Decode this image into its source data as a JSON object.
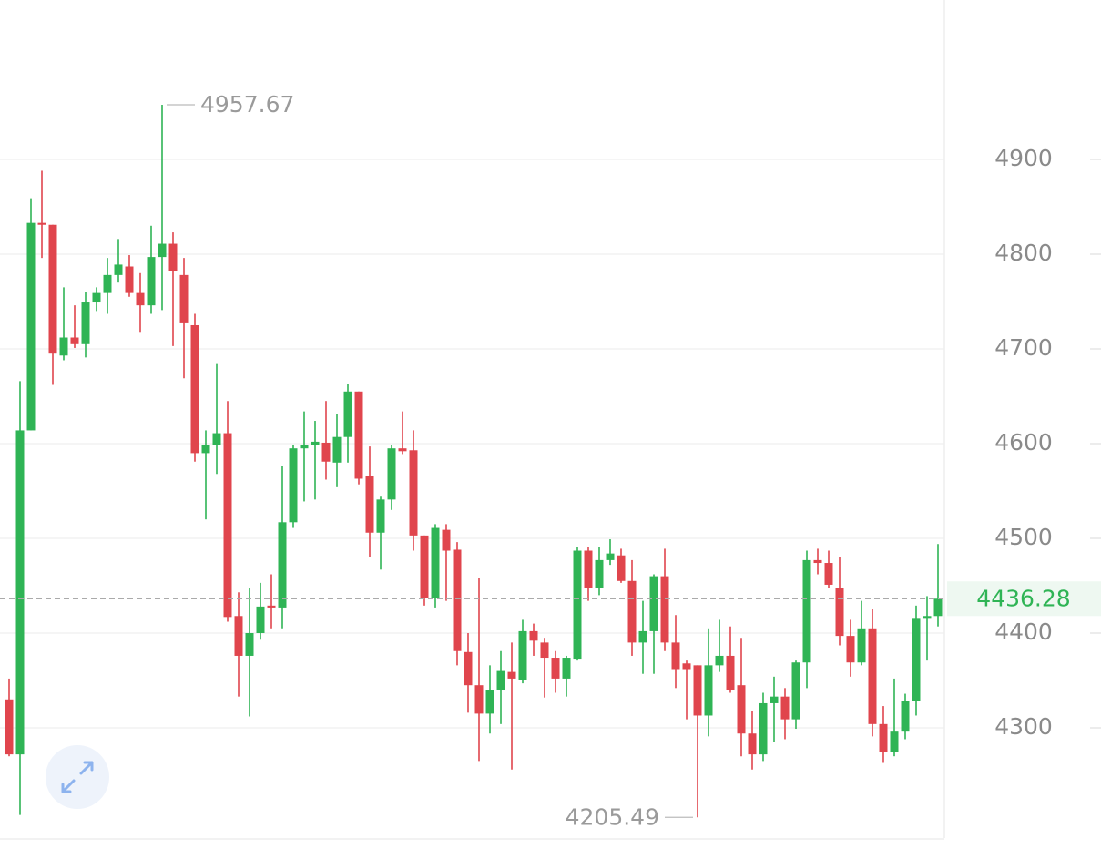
{
  "chart_data": {
    "type": "candlestick",
    "up_color": "#2fb455",
    "down_color": "#e0454d",
    "open": [
      4330,
      4272,
      4614,
      4833,
      4831,
      4693,
      4712,
      4705,
      4749,
      4759,
      4778,
      4787,
      4759,
      4746,
      4797,
      4811,
      4778,
      4725,
      4590,
      4599,
      4611,
      4418,
      4376,
      4400,
      4429,
      4427,
      4517,
      4595,
      4599,
      4601,
      4580,
      4607,
      4655,
      4566,
      4506,
      4541,
      4595,
      4593,
      4503,
      4437,
      4509,
      4488,
      4380,
      4345,
      4315,
      4340,
      4359,
      4350,
      4402,
      4390,
      4374,
      4352,
      4373,
      4487,
      4448,
      4477,
      4482,
      4455,
      4390,
      4402,
      4460,
      4390,
      4368,
      4366,
      4313,
      4366,
      4376,
      4345,
      4294,
      4272,
      4326,
      4333,
      4309,
      4369,
      4477,
      4474,
      4448,
      4397,
      4369,
      4405,
      4304,
      4275,
      4296,
      4328,
      4416,
      4418
    ],
    "high": [
      4352,
      4666,
      4859,
      4888,
      4831,
      4765,
      4746,
      4760,
      4765,
      4796,
      4816,
      4799,
      4780,
      4830,
      4957.67,
      4823,
      4796,
      4737,
      4614,
      4684,
      4645,
      4443,
      4448,
      4453,
      4462,
      4576,
      4599,
      4634,
      4624,
      4645,
      4631,
      4663,
      4655,
      4597,
      4544,
      4599,
      4634,
      4614,
      4503,
      4515,
      4515,
      4496,
      4400,
      4458,
      4366,
      4381,
      4390,
      4414,
      4410,
      4395,
      4381,
      4376,
      4491,
      4491,
      4491,
      4499,
      4489,
      4477,
      4434,
      4462,
      4489,
      4419,
      4371,
      4366,
      4405,
      4414,
      4407,
      4395,
      4318,
      4337,
      4354,
      4342,
      4371,
      4487,
      4489,
      4487,
      4480,
      4414,
      4434,
      4426,
      4323,
      4352,
      4336,
      4429,
      4439,
      4494
    ],
    "low": [
      4270,
      4208,
      4614,
      4796,
      4662,
      4688,
      4701,
      4691,
      4740,
      4737,
      4770,
      4755,
      4717,
      4737,
      4741,
      4703,
      4669,
      4581,
      4520,
      4568,
      4412,
      4333,
      4312,
      4393,
      4405,
      4405,
      4511,
      4539,
      4541,
      4562,
      4554,
      4580,
      4557,
      4480,
      4467,
      4530,
      4589,
      4487,
      4429,
      4427,
      4434,
      4366,
      4316,
      4265,
      4294,
      4304,
      4256,
      4347,
      4376,
      4332,
      4337,
      4333,
      4371,
      4434,
      4440,
      4472,
      4453,
      4376,
      4357,
      4357,
      4381,
      4342,
      4309,
      4205.49,
      4291,
      4359,
      4337,
      4270,
      4256,
      4265,
      4285,
      4288,
      4299,
      4342,
      4462,
      4448,
      4387,
      4354,
      4366,
      4291,
      4263,
      4270,
      4288,
      4313,
      4371,
      4407
    ],
    "close": [
      4272,
      4614,
      4833,
      4831,
      4695,
      4712,
      4705,
      4749,
      4759,
      4778,
      4789,
      4759,
      4746,
      4797,
      4811,
      4782,
      4727,
      4590,
      4599,
      4611,
      4417,
      4376,
      4400,
      4428,
      4427,
      4517,
      4595,
      4599,
      4602,
      4581,
      4607,
      4655,
      4563,
      4506,
      4541,
      4595,
      4592,
      4503,
      4437,
      4511,
      4487,
      4381,
      4345,
      4315,
      4340,
      4360,
      4352,
      4402,
      4392,
      4374,
      4352,
      4374,
      4487,
      4448,
      4477,
      4484,
      4455,
      4390,
      4402,
      4460,
      4390,
      4362,
      4362,
      4313,
      4366,
      4376,
      4340,
      4294,
      4272,
      4326,
      4333,
      4309,
      4369,
      4477,
      4474,
      4451,
      4397,
      4369,
      4405,
      4304,
      4275,
      4296,
      4328,
      4416,
      4418,
      4436.28
    ],
    "high_label": 4957.67,
    "low_label": 4205.49,
    "last_price": 4436.28,
    "ylim": [
      4183.65,
      5068.25
    ],
    "yticks": [
      4300,
      4400,
      4500,
      4600,
      4700,
      4800,
      4900
    ],
    "grid": true
  }
}
